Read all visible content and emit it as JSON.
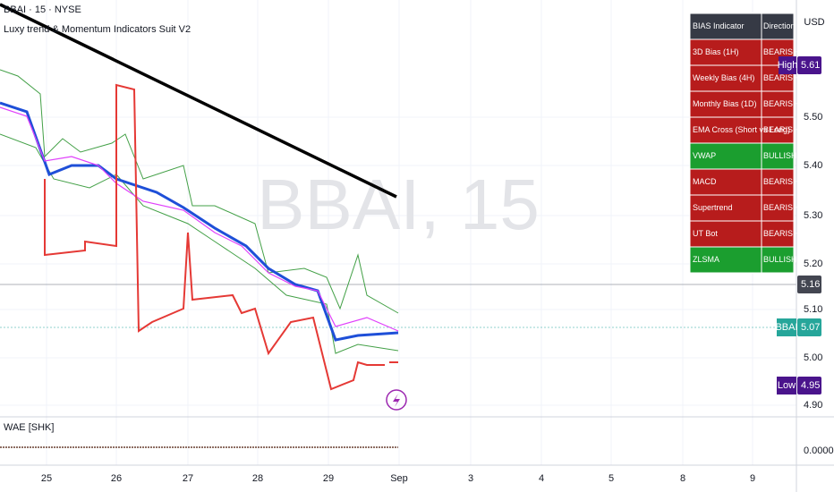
{
  "header": {
    "symbol": "BBAI · 15 · NYSE",
    "indicator": "Luxy trend & Momentum Indicators Suit V2",
    "watermark": "BBAI, 15"
  },
  "table": {
    "header": [
      "BIAS Indicator",
      "Direction"
    ],
    "rows": [
      [
        "3D Bias (1H)",
        "BEARISH"
      ],
      [
        "Weekly Bias (4H)",
        "BEARISH"
      ],
      [
        "Monthly Bias (1D)",
        "BEARISH"
      ],
      [
        "EMA Cross (Short vs Long)",
        "BEARISH"
      ],
      [
        "VWAP",
        "BULLISH"
      ],
      [
        "MACD",
        "BEARISH"
      ],
      [
        "Supertrend",
        "BEARISH"
      ],
      [
        "UT Bot",
        "BEARISH"
      ],
      [
        "ZLSMA",
        "BULLISH"
      ]
    ]
  },
  "price_axis": {
    "currency": "USD",
    "labels": [
      "5.50",
      "5.40",
      "5.30",
      "5.20",
      "5.10",
      "5.00",
      "4.90"
    ],
    "lower_label": "0.0000"
  },
  "price_tags": {
    "high_label": "High",
    "high": "5.61",
    "last": "5.16",
    "symbol": "BBAI",
    "current": "5.07",
    "low_label": "Low",
    "low": "4.95"
  },
  "time_axis": [
    "25",
    "26",
    "27",
    "28",
    "29",
    "Sep",
    "3",
    "4",
    "5",
    "8",
    "9"
  ],
  "lower_pane": {
    "label": "WAE [SHK]"
  }
}
